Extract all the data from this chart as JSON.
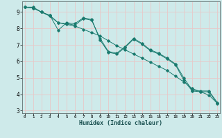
{
  "xlabel": "Humidex (Indice chaleur)",
  "bg_color": "#ceeaea",
  "grid_color": "#e8c8c8",
  "line_color": "#1a7a6e",
  "x_values": [
    0,
    1,
    2,
    3,
    4,
    5,
    6,
    7,
    8,
    9,
    10,
    11,
    12,
    13,
    14,
    15,
    16,
    17,
    18,
    19,
    20,
    21,
    22,
    23
  ],
  "line1": [
    9.3,
    9.3,
    9.0,
    8.8,
    7.9,
    8.35,
    8.3,
    8.65,
    8.55,
    7.3,
    6.55,
    6.45,
    6.85,
    7.35,
    7.05,
    6.65,
    6.45,
    6.15,
    5.8,
    4.85,
    4.2,
    4.15,
    4.15,
    3.45
  ],
  "line2": [
    9.3,
    9.25,
    9.0,
    8.75,
    8.35,
    8.25,
    8.15,
    7.95,
    7.75,
    7.55,
    7.25,
    6.95,
    6.7,
    6.45,
    6.2,
    5.95,
    5.7,
    5.45,
    5.1,
    4.75,
    4.35,
    4.15,
    3.95,
    3.45
  ],
  "line3": [
    9.3,
    9.25,
    9.0,
    8.8,
    8.35,
    8.3,
    8.2,
    8.6,
    8.5,
    7.4,
    6.6,
    6.5,
    6.9,
    7.4,
    7.1,
    6.7,
    6.5,
    6.2,
    5.85,
    5.0,
    4.25,
    4.2,
    4.2,
    3.5
  ],
  "ylim": [
    2.85,
    9.65
  ],
  "yticks": [
    3,
    4,
    5,
    6,
    7,
    8,
    9
  ],
  "xlim": [
    -0.3,
    23.3
  ]
}
